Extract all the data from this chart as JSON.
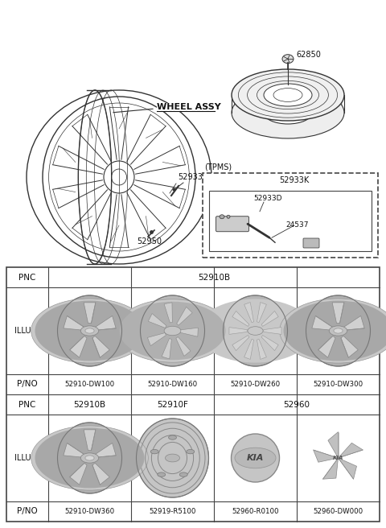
{
  "bg_color": "#ffffff",
  "line_color": "#333333",
  "table": {
    "row1_pnc": "52910B",
    "row1_pno": [
      "52910-DW100",
      "52910-DW160",
      "52910-DW260",
      "52910-DW300"
    ],
    "row2_pnc": [
      "52910B",
      "52910F",
      "52960"
    ],
    "row2_pno": [
      "52910-DW360",
      "52919-R5100",
      "52960-R0100",
      "52960-DW000"
    ]
  },
  "labels": {
    "wheel_assy": "WHEEL ASSY",
    "p52933": "52933",
    "p52950": "52950",
    "p62850": "62850",
    "tpms": "(TPMS)",
    "p52933K": "52933K",
    "p52933D": "52933D",
    "p24537": "24537"
  },
  "table_border_color": "#444444",
  "table_text_color": "#111111"
}
